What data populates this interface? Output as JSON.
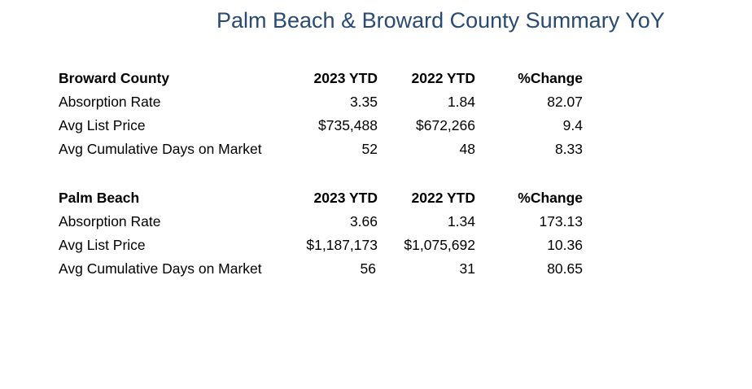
{
  "title": "Palm Beach & Broward County Summary YoY",
  "sections": [
    {
      "header": {
        "label": "Broward County",
        "col_2023": "2023 YTD",
        "col_2022": "2022 YTD",
        "col_change": "%Change"
      },
      "rows": [
        {
          "label": "Absorption Rate",
          "v2023": "3.35",
          "v2022": "1.84",
          "change": "82.07"
        },
        {
          "label": "Avg List Price",
          "v2023": "$735,488",
          "v2022": "$672,266",
          "change": "9.4"
        },
        {
          "label": "Avg Cumulative Days on Market",
          "v2023": "52",
          "v2022": "48",
          "change": "8.33"
        }
      ]
    },
    {
      "header": {
        "label": "Palm Beach",
        "col_2023": "2023 YTD",
        "col_2022": "2022 YTD",
        "col_change": "%Change"
      },
      "rows": [
        {
          "label": "Absorption Rate",
          "v2023": "3.66",
          "v2022": "1.34",
          "change": "173.13"
        },
        {
          "label": "Avg List Price",
          "v2023": "$1,187,173",
          "v2022": "$1,075,692",
          "change": "10.36"
        },
        {
          "label": "Avg Cumulative Days on Market",
          "v2023": "56",
          "v2022": "31",
          "change": "80.65"
        }
      ]
    }
  ]
}
